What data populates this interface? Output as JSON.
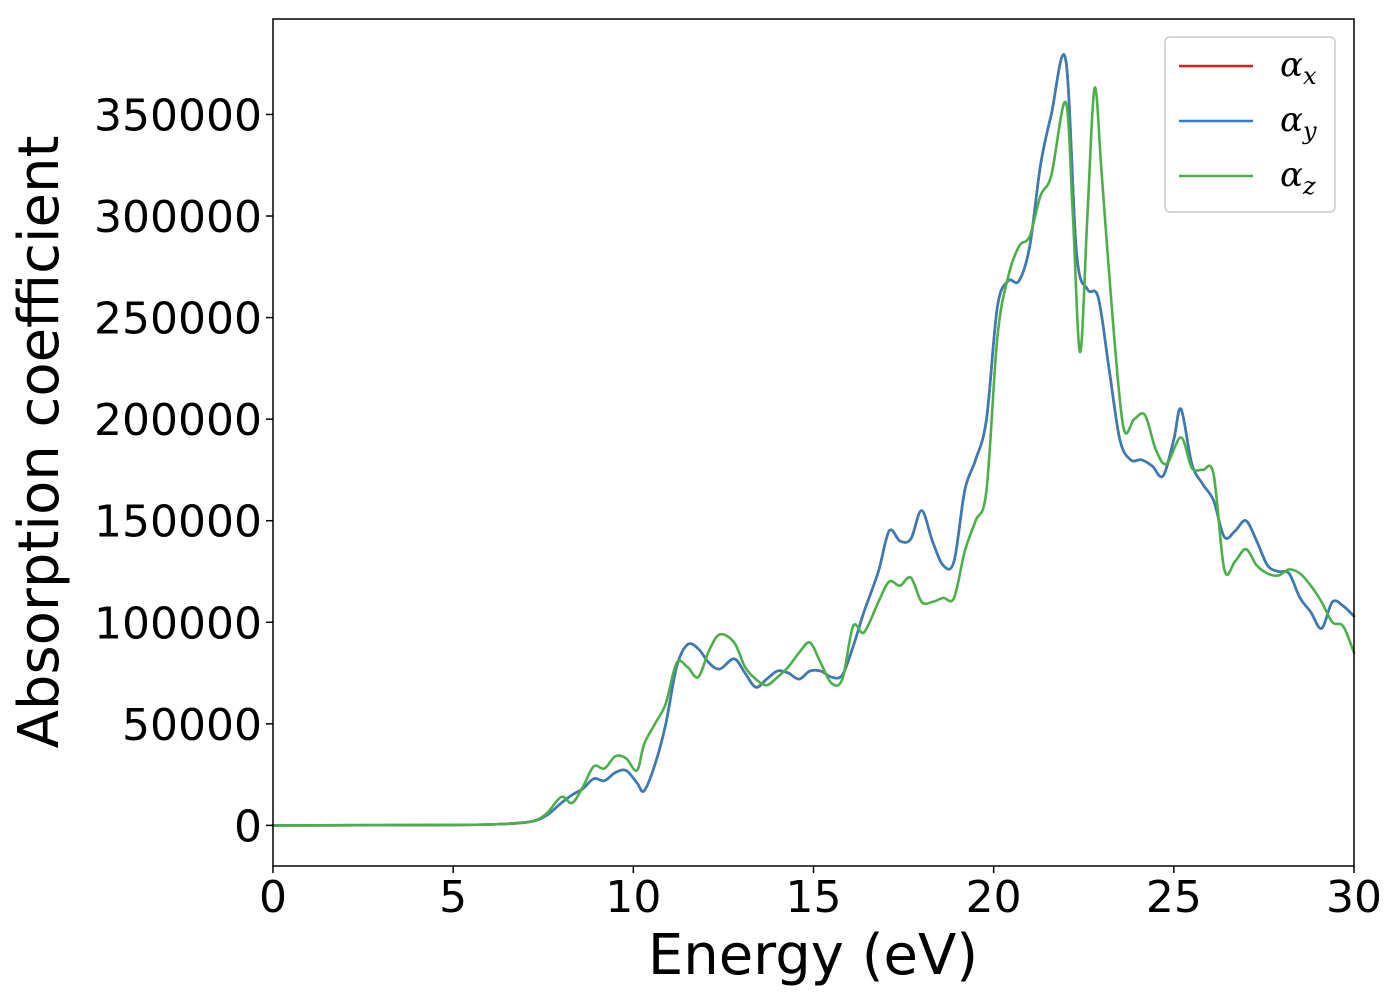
{
  "chart_data": {
    "type": "line",
    "xlabel": "Energy (eV)",
    "ylabel": "Absorption coefficient",
    "xlim": [
      0,
      30
    ],
    "ylim": [
      -20000,
      397000
    ],
    "xticks": [
      0,
      5,
      10,
      15,
      20,
      25,
      30
    ],
    "xtick_labels": [
      "0",
      "5",
      "10",
      "15",
      "20",
      "25",
      "30"
    ],
    "yticks": [
      0,
      50000,
      100000,
      150000,
      200000,
      250000,
      300000,
      350000
    ],
    "ytick_labels": [
      "0",
      "50000",
      "100000",
      "150000",
      "200000",
      "250000",
      "300000",
      "350000"
    ],
    "grid": false,
    "legend_position": "top-right",
    "series": [
      {
        "name": "α",
        "subscript": "x",
        "color": "#e41a1c",
        "x": [
          0,
          5,
          6.5,
          7.2,
          7.6,
          8.0,
          8.3,
          8.6,
          8.9,
          9.2,
          9.5,
          9.8,
          10.1,
          10.3,
          10.6,
          10.9,
          11.2,
          11.5,
          11.8,
          12.1,
          12.4,
          12.8,
          13.1,
          13.4,
          13.7,
          14.0,
          14.3,
          14.6,
          14.9,
          15.2,
          15.5,
          15.8,
          16.1,
          16.4,
          16.8,
          17.1,
          17.4,
          17.7,
          18.0,
          18.3,
          18.6,
          18.9,
          19.2,
          19.5,
          19.8,
          20.1,
          20.4,
          20.7,
          21.0,
          21.3,
          21.6,
          22.0,
          22.3,
          22.6,
          22.9,
          23.2,
          23.5,
          23.8,
          24.1,
          24.4,
          24.7,
          25.0,
          25.2,
          25.5,
          25.8,
          26.1,
          26.4,
          26.7,
          27.0,
          27.3,
          27.6,
          27.9,
          28.2,
          28.5,
          28.8,
          29.1,
          29.4,
          29.7,
          30.0
        ],
        "y": [
          0,
          200,
          800,
          2000,
          5000,
          11000,
          15000,
          18000,
          23000,
          22000,
          26000,
          27000,
          21000,
          17000,
          30000,
          50000,
          78000,
          89000,
          87000,
          80000,
          77000,
          82000,
          75000,
          68000,
          72000,
          76000,
          75000,
          72000,
          76000,
          76000,
          73000,
          74000,
          88000,
          105000,
          125000,
          145000,
          140000,
          141000,
          155000,
          140000,
          128000,
          130000,
          165000,
          180000,
          200000,
          255000,
          268000,
          268000,
          285000,
          325000,
          350000,
          377000,
          282000,
          264000,
          260000,
          225000,
          190000,
          180000,
          180000,
          177000,
          172000,
          190000,
          205000,
          178000,
          168000,
          160000,
          142000,
          145000,
          150000,
          140000,
          128000,
          125000,
          124000,
          112000,
          105000,
          97000,
          110000,
          108000,
          103000
        ]
      },
      {
        "name": "α",
        "subscript": "y",
        "color": "#377eb8",
        "x": [
          0,
          5,
          6.5,
          7.2,
          7.6,
          8.0,
          8.3,
          8.6,
          8.9,
          9.2,
          9.5,
          9.8,
          10.1,
          10.3,
          10.6,
          10.9,
          11.2,
          11.5,
          11.8,
          12.1,
          12.4,
          12.8,
          13.1,
          13.4,
          13.7,
          14.0,
          14.3,
          14.6,
          14.9,
          15.2,
          15.5,
          15.8,
          16.1,
          16.4,
          16.8,
          17.1,
          17.4,
          17.7,
          18.0,
          18.3,
          18.6,
          18.9,
          19.2,
          19.5,
          19.8,
          20.1,
          20.4,
          20.7,
          21.0,
          21.3,
          21.6,
          22.0,
          22.3,
          22.6,
          22.9,
          23.2,
          23.5,
          23.8,
          24.1,
          24.4,
          24.7,
          25.0,
          25.2,
          25.5,
          25.8,
          26.1,
          26.4,
          26.7,
          27.0,
          27.3,
          27.6,
          27.9,
          28.2,
          28.5,
          28.8,
          29.1,
          29.4,
          29.7,
          30.0
        ],
        "y": [
          0,
          200,
          800,
          2000,
          5000,
          11000,
          15000,
          18000,
          23000,
          22000,
          26000,
          27000,
          21000,
          17000,
          30000,
          50000,
          78000,
          89000,
          87000,
          80000,
          77000,
          82000,
          75000,
          68000,
          72000,
          76000,
          75000,
          72000,
          76000,
          76000,
          73000,
          74000,
          88000,
          105000,
          125000,
          145000,
          140000,
          141000,
          155000,
          140000,
          128000,
          130000,
          165000,
          180000,
          200000,
          255000,
          268000,
          268000,
          285000,
          325000,
          350000,
          377000,
          282000,
          264000,
          260000,
          225000,
          190000,
          180000,
          180000,
          177000,
          172000,
          190000,
          205000,
          178000,
          168000,
          160000,
          142000,
          145000,
          150000,
          140000,
          128000,
          125000,
          124000,
          112000,
          105000,
          97000,
          110000,
          108000,
          103000
        ]
      },
      {
        "name": "α",
        "subscript": "z",
        "color": "#4daf4a",
        "x": [
          0,
          5,
          6.5,
          7.2,
          7.6,
          8.0,
          8.3,
          8.6,
          8.9,
          9.2,
          9.5,
          9.8,
          10.1,
          10.3,
          10.6,
          10.9,
          11.2,
          11.5,
          11.8,
          12.1,
          12.4,
          12.8,
          13.1,
          13.4,
          13.7,
          14.0,
          14.3,
          14.6,
          14.9,
          15.2,
          15.5,
          15.8,
          16.1,
          16.4,
          16.8,
          17.1,
          17.4,
          17.7,
          18.0,
          18.3,
          18.6,
          18.9,
          19.2,
          19.5,
          19.8,
          20.1,
          20.4,
          20.7,
          21.0,
          21.3,
          21.6,
          22.0,
          22.2,
          22.4,
          22.6,
          22.8,
          23.0,
          23.3,
          23.6,
          23.9,
          24.2,
          24.5,
          24.8,
          25.2,
          25.5,
          25.8,
          26.1,
          26.4,
          26.7,
          27.0,
          27.3,
          27.6,
          27.9,
          28.2,
          28.5,
          28.8,
          29.1,
          29.4,
          29.7,
          30.0
        ],
        "y": [
          0,
          200,
          800,
          2000,
          6000,
          14000,
          11000,
          19000,
          29000,
          28000,
          34000,
          33000,
          27000,
          40000,
          50000,
          60000,
          80000,
          78000,
          73000,
          86000,
          94000,
          90000,
          78000,
          72000,
          69000,
          73000,
          78000,
          85000,
          90000,
          80000,
          70000,
          72000,
          98000,
          95000,
          110000,
          120000,
          118000,
          122000,
          110000,
          110000,
          112000,
          112000,
          135000,
          150000,
          165000,
          240000,
          270000,
          285000,
          290000,
          310000,
          320000,
          356000,
          300000,
          233000,
          300000,
          363000,
          320000,
          250000,
          196000,
          200000,
          202000,
          185000,
          178000,
          191000,
          176000,
          175000,
          173000,
          126000,
          130000,
          136000,
          128000,
          124000,
          123000,
          126000,
          124000,
          118000,
          110000,
          100000,
          98000,
          85000
        ]
      }
    ]
  }
}
